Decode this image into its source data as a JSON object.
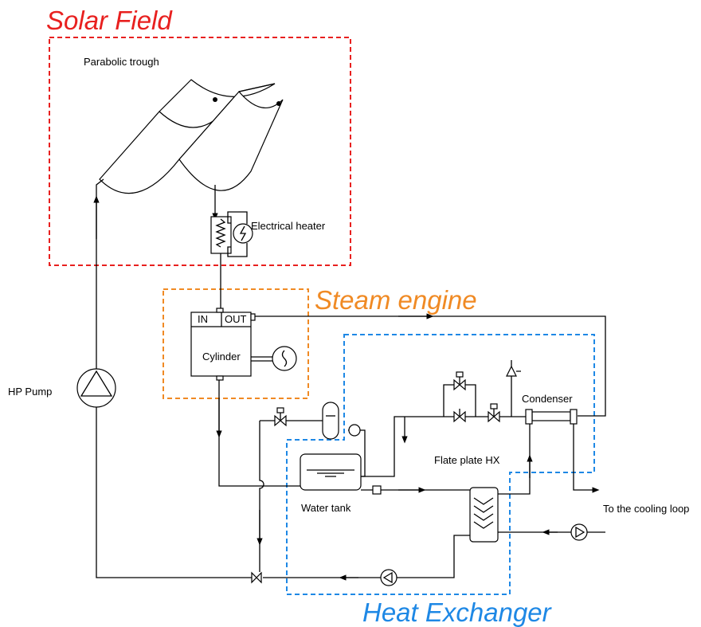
{
  "regions": {
    "solar_field": "Solar Field",
    "steam_engine": "Steam engine",
    "heat_exchanger": "Heat Exchanger"
  },
  "components": {
    "parabolic_trough": "Parabolic trough",
    "electrical_heater": "Electrical heater",
    "cylinder": "Cylinder",
    "cylinder_in": "IN",
    "cylinder_out": "OUT",
    "hp_pump": "HP Pump",
    "condenser": "Condenser",
    "plate_hx": "Flate plate HX",
    "water_tank": "Water tank",
    "cooling_loop": "To the cooling loop"
  }
}
